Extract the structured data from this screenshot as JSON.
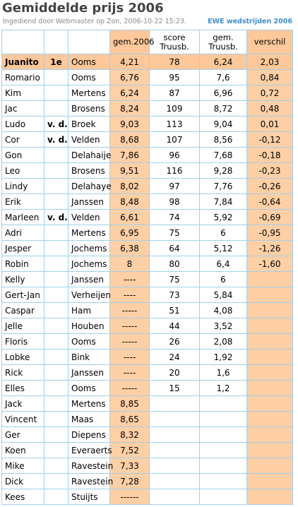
{
  "header": {
    "title": "Gemiddelde prijs 2006",
    "subtitle": "Ingediend door Webmaster op Zon, 2006-10-22 15:23.",
    "link_label": "EWE wedstrijden 2006"
  },
  "columns": {
    "gem": "gem.2006",
    "score_l1": "score",
    "score_l2": "Truusb.",
    "truusb_l1": "gem.",
    "truusb_l2": "Truusb.",
    "verschil": "verschil"
  },
  "rows": [
    {
      "first": "Juanito",
      "prefix": "1e",
      "last": "Ooms",
      "gem": "4,21",
      "score": "78",
      "truusb": "6,24",
      "verschil": "2,03"
    },
    {
      "first": "Romario",
      "prefix": "",
      "last": "Ooms",
      "gem": "6,76",
      "score": "95",
      "truusb": "7,6",
      "verschil": "0,84"
    },
    {
      "first": "Kim",
      "prefix": "",
      "last": "Mertens",
      "gem": "6,24",
      "score": "87",
      "truusb": "6,96",
      "verschil": "0,72"
    },
    {
      "first": "Jac",
      "prefix": "",
      "last": "Brosens",
      "gem": "8,24",
      "score": "109",
      "truusb": "8,72",
      "verschil": "0,48"
    },
    {
      "first": "Ludo",
      "prefix": "v. d.",
      "last": "Broek",
      "gem": "9,03",
      "score": "113",
      "truusb": "9,04",
      "verschil": "0,01"
    },
    {
      "first": "Cor",
      "prefix": "v. d.",
      "last": "Velden",
      "gem": "8,68",
      "score": "107",
      "truusb": "8,56",
      "verschil": "-0,12"
    },
    {
      "first": "Gon",
      "prefix": "",
      "last": "Delahaije",
      "gem": "7,86",
      "score": "96",
      "truusb": "7,68",
      "verschil": "-0,18"
    },
    {
      "first": "Leo",
      "prefix": "",
      "last": "Brosens",
      "gem": "9,51",
      "score": "116",
      "truusb": "9,28",
      "verschil": "-0,23"
    },
    {
      "first": "Lindy",
      "prefix": "",
      "last": "Delahaye",
      "gem": "8,02",
      "score": "97",
      "truusb": "7,76",
      "verschil": "-0,26"
    },
    {
      "first": "Erik",
      "prefix": "",
      "last": "Janssen",
      "gem": "8,48",
      "score": "98",
      "truusb": "7,84",
      "verschil": "-0,64"
    },
    {
      "first": "Marleen",
      "prefix": "v. d.",
      "last": "Velden",
      "gem": "6,61",
      "score": "74",
      "truusb": "5,92",
      "verschil": "-0,69"
    },
    {
      "first": "Adri",
      "prefix": "",
      "last": "Mertens",
      "gem": "6,95",
      "score": "75",
      "truusb": "6",
      "verschil": "-0,95"
    },
    {
      "first": "Jesper",
      "prefix": "",
      "last": "Jochems",
      "gem": "6,38",
      "score": "64",
      "truusb": "5,12",
      "verschil": "-1,26"
    },
    {
      "first": "Robin",
      "prefix": "",
      "last": "Jochems",
      "gem": "8",
      "score": "80",
      "truusb": "6,4",
      "verschil": "-1,60"
    },
    {
      "first": "Kelly",
      "prefix": "",
      "last": "Janssen",
      "gem": "----",
      "score": "75",
      "truusb": "6",
      "verschil": ""
    },
    {
      "first": "Gert-Jan",
      "prefix": "",
      "last": "Verheijen",
      "gem": "----",
      "score": "73",
      "truusb": "5,84",
      "verschil": ""
    },
    {
      "first": "Caspar",
      "prefix": "",
      "last": "Ham",
      "gem": "-----",
      "score": "51",
      "truusb": "4,08",
      "verschil": ""
    },
    {
      "first": "Jelle",
      "prefix": "",
      "last": "Houben",
      "gem": "-----",
      "score": "44",
      "truusb": "3,52",
      "verschil": ""
    },
    {
      "first": "Floris",
      "prefix": "",
      "last": "Ooms",
      "gem": "-----",
      "score": "26",
      "truusb": "2,08",
      "verschil": ""
    },
    {
      "first": "Lobke",
      "prefix": "",
      "last": "Bink",
      "gem": "----",
      "score": "24",
      "truusb": "1,92",
      "verschil": ""
    },
    {
      "first": "Rick",
      "prefix": "",
      "last": "Janssen",
      "gem": "----",
      "score": "20",
      "truusb": "1,6",
      "verschil": ""
    },
    {
      "first": "Elles",
      "prefix": "",
      "last": "Ooms",
      "gem": "-----",
      "score": "15",
      "truusb": "1,2",
      "verschil": ""
    },
    {
      "first": "Jack",
      "prefix": "",
      "last": "Mertens",
      "gem": "8,85",
      "score": "",
      "truusb": "",
      "verschil": ""
    },
    {
      "first": "Vincent",
      "prefix": "",
      "last": "Maas",
      "gem": "8,65",
      "score": "",
      "truusb": "",
      "verschil": ""
    },
    {
      "first": "Ger",
      "prefix": "",
      "last": "Diepens",
      "gem": "8,32",
      "score": "",
      "truusb": "",
      "verschil": ""
    },
    {
      "first": "Koen",
      "prefix": "",
      "last": "Everaerts",
      "gem": "7,52",
      "score": "",
      "truusb": "",
      "verschil": ""
    },
    {
      "first": "Mike",
      "prefix": "",
      "last": "Ravestein",
      "gem": "7,33",
      "score": "",
      "truusb": "",
      "verschil": ""
    },
    {
      "first": "Dick",
      "prefix": "",
      "last": "Ravestein",
      "gem": "7,28",
      "score": "",
      "truusb": "",
      "verschil": ""
    },
    {
      "first": "Kees",
      "prefix": "",
      "last": "Stuijts",
      "gem": "------",
      "score": "",
      "truusb": "",
      "verschil": ""
    }
  ]
}
